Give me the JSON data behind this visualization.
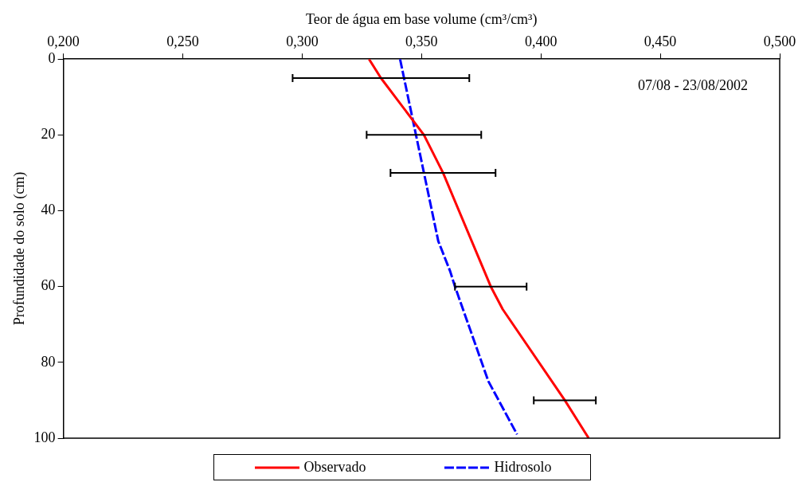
{
  "chart_data": {
    "type": "line",
    "xlabel": "Teor de água em base volume (cm³/cm³)",
    "ylabel": "Profundidade do solo (cm)",
    "xlim": [
      0.2,
      0.5
    ],
    "xticks": [
      {
        "value": 0.2,
        "label": "0,200"
      },
      {
        "value": 0.25,
        "label": "0,250"
      },
      {
        "value": 0.3,
        "label": "0,300"
      },
      {
        "value": 0.35,
        "label": "0,350"
      },
      {
        "value": 0.4,
        "label": "0,400"
      },
      {
        "value": 0.45,
        "label": "0,450"
      },
      {
        "value": 0.5,
        "label": "0,500"
      }
    ],
    "ylim": [
      100,
      0
    ],
    "yticks": [
      0,
      20,
      40,
      60,
      80,
      100
    ],
    "series": [
      {
        "name": "Observado",
        "color": "#ff0000",
        "line_style": "solid",
        "x": [
          0.328,
          0.333,
          0.351,
          0.359,
          0.379,
          0.384,
          0.41,
          0.42
        ],
        "values": [
          0,
          5,
          20,
          30,
          60,
          66,
          90,
          100
        ],
        "xerrors": [
          null,
          0.037,
          0.024,
          0.022,
          0.015,
          null,
          0.013,
          null
        ]
      },
      {
        "name": "Hidrosolo",
        "color": "#0000ff",
        "line_style": "dashed",
        "x": [
          0.341,
          0.346,
          0.351,
          0.357,
          0.362,
          0.364,
          0.378,
          0.39
        ],
        "values": [
          0,
          15,
          30,
          48,
          56,
          60,
          85,
          99
        ]
      }
    ],
    "annotations": [
      "07/08 - 23/08/2002"
    ],
    "grid": false,
    "legend": "bottom",
    "marker": "none"
  }
}
